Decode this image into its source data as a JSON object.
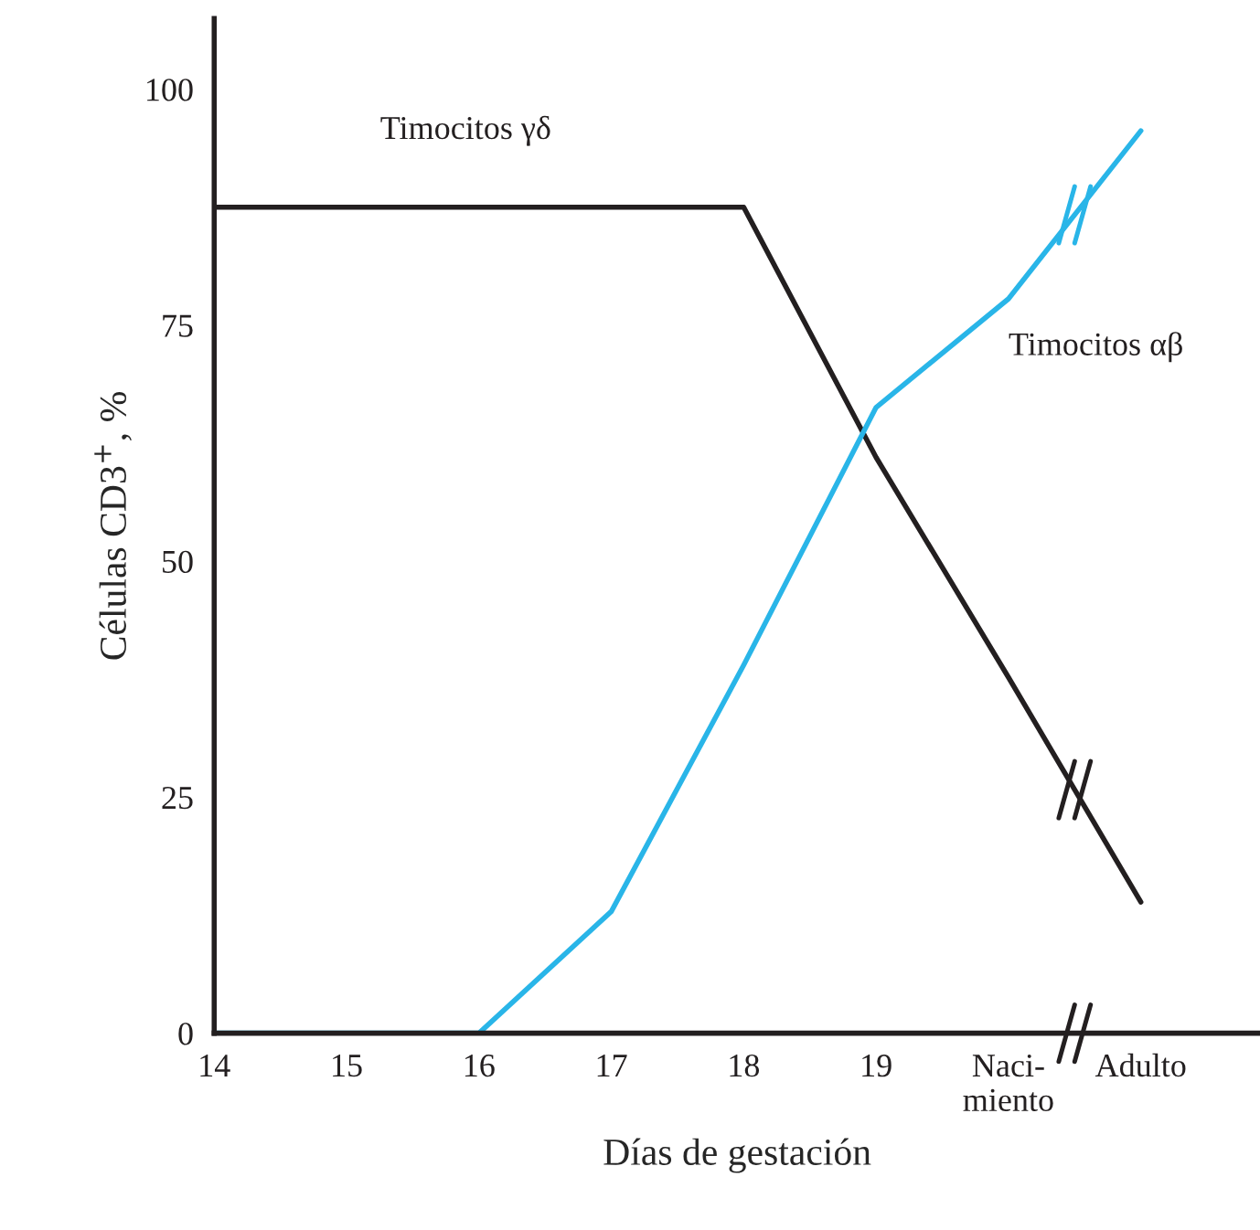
{
  "chart_data": {
    "type": "line",
    "xlabel": "Días de gestación",
    "ylabel": "Células CD3$^{+}$, %",
    "categories": [
      "14",
      "15",
      "16",
      "17",
      "18",
      "19",
      "Naci-\nmiento",
      "Adulto"
    ],
    "series": [
      {
        "name": "Timocitos γδ",
        "color": "#231f20",
        "values": [
          87.5,
          87.5,
          87.5,
          87.5,
          87.5,
          61,
          37.7,
          13.9
        ]
      },
      {
        "name": "Timocitos αβ",
        "color": "#29b5e8",
        "values": [
          0,
          0,
          0,
          12.9,
          39,
          66.3,
          77.8,
          95.6
        ]
      }
    ],
    "ylim": [
      0,
      107.5
    ],
    "yticks": [
      0,
      25,
      50,
      75,
      100
    ],
    "grid": false,
    "legend": false,
    "marker": "none",
    "line_style": "solid"
  }
}
